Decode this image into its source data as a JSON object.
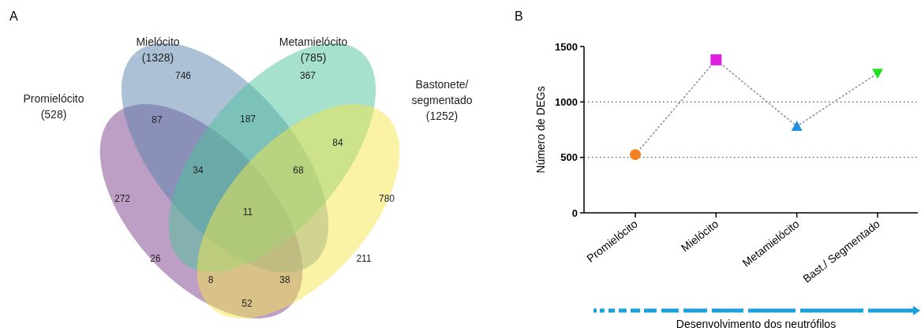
{
  "chart_data": [
    {
      "type": "other",
      "title": "A",
      "categories": [
        "Promielócito (528)",
        "Mielócito (1328)",
        "Metamielócito (785)",
        "Bastonete/ segmentado (1252)"
      ],
      "colors": [
        "#7b3f8c",
        "#5a82ad",
        "#4cc49a",
        "#f5e54a"
      ],
      "annotations": [
        "746",
        "367",
        "87",
        "187",
        "84",
        "272",
        "34",
        "68",
        "780",
        "11",
        "26",
        "211",
        "8",
        "38",
        "52"
      ]
    },
    {
      "type": "line",
      "title": "B",
      "categories": [
        "Promielócito",
        "Mielócito",
        "Metamielócito",
        "Bast./ Segmentado"
      ],
      "xlabel": "Desenvolvimento dos neutrófilos",
      "ylabel": "Número de DEGs",
      "ylim": [
        0,
        1500
      ],
      "yticks": [
        0,
        500,
        1000,
        1500
      ],
      "grid": false,
      "ref_lines": [
        {
          "axis": "y",
          "value": 500,
          "line_style": "dotted",
          "color": "#555555"
        },
        {
          "axis": "y",
          "value": 1000,
          "line_style": "dotted",
          "color": "#555555"
        }
      ],
      "series": [
        {
          "type": "line",
          "color": "#8a8a8a",
          "values": [
            525,
            1380,
            780,
            1260
          ],
          "line_style": "dotted",
          "marker": "none"
        },
        {
          "type": "scatter",
          "color": "#f58220",
          "values": [
            525,
            null,
            null,
            null
          ],
          "marker": "circle"
        },
        {
          "type": "scatter",
          "color": "#e020e0",
          "values": [
            null,
            1380,
            null,
            null
          ],
          "marker": "square"
        },
        {
          "type": "scatter",
          "color": "#1e90e0",
          "values": [
            null,
            null,
            780,
            null
          ],
          "marker": "triangle"
        },
        {
          "type": "scatter",
          "color": "#22e022",
          "values": [
            null,
            null,
            null,
            1260
          ],
          "marker": "triangle-down"
        }
      ]
    }
  ]
}
